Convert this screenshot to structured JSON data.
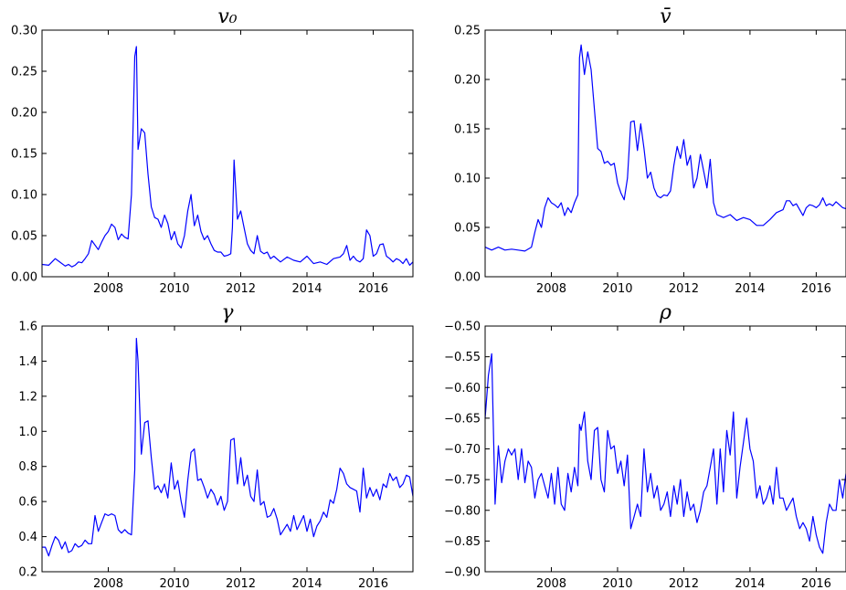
{
  "chart_data": [
    {
      "type": "line",
      "title": "v₀",
      "xlim": [
        2006.0,
        2017.2
      ],
      "ylim": [
        0.0,
        0.3
      ],
      "xticks": [
        2008,
        2010,
        2012,
        2014,
        2016
      ],
      "xtick_labels": [
        "2008",
        "2010",
        "2012",
        "2014",
        "2016"
      ],
      "yticks": [
        0.0,
        0.05,
        0.1,
        0.15,
        0.2,
        0.25,
        0.3
      ],
      "ytick_labels": [
        "0.00",
        "0.05",
        "0.10",
        "0.15",
        "0.20",
        "0.25",
        "0.30"
      ],
      "series": [
        {
          "color": "#0000ff",
          "x": [
            2006.0,
            2006.2,
            2006.4,
            2006.5,
            2006.7,
            2006.8,
            2006.9,
            2007.0,
            2007.1,
            2007.2,
            2007.3,
            2007.4,
            2007.5,
            2007.7,
            2007.8,
            2007.9,
            2008.0,
            2008.1,
            2008.2,
            2008.3,
            2008.4,
            2008.5,
            2008.6,
            2008.7,
            2008.8,
            2008.85,
            2008.9,
            2009.0,
            2009.1,
            2009.2,
            2009.3,
            2009.4,
            2009.5,
            2009.6,
            2009.7,
            2009.8,
            2009.9,
            2010.0,
            2010.1,
            2010.2,
            2010.3,
            2010.4,
            2010.5,
            2010.6,
            2010.7,
            2010.8,
            2010.9,
            2011.0,
            2011.1,
            2011.2,
            2011.3,
            2011.4,
            2011.5,
            2011.6,
            2011.7,
            2011.75,
            2011.8,
            2011.9,
            2012.0,
            2012.1,
            2012.2,
            2012.3,
            2012.4,
            2012.5,
            2012.6,
            2012.7,
            2012.8,
            2012.9,
            2013.0,
            2013.2,
            2013.4,
            2013.6,
            2013.8,
            2014.0,
            2014.2,
            2014.4,
            2014.6,
            2014.8,
            2015.0,
            2015.1,
            2015.2,
            2015.3,
            2015.4,
            2015.5,
            2015.6,
            2015.7,
            2015.8,
            2015.9,
            2016.0,
            2016.1,
            2016.2,
            2016.3,
            2016.4,
            2016.5,
            2016.6,
            2016.7,
            2016.8,
            2016.9,
            2017.0,
            2017.1,
            2017.2
          ],
          "y": [
            0.015,
            0.014,
            0.022,
            0.019,
            0.013,
            0.015,
            0.012,
            0.014,
            0.018,
            0.017,
            0.022,
            0.028,
            0.044,
            0.033,
            0.042,
            0.05,
            0.055,
            0.064,
            0.06,
            0.045,
            0.052,
            0.048,
            0.046,
            0.1,
            0.268,
            0.28,
            0.155,
            0.18,
            0.175,
            0.125,
            0.085,
            0.072,
            0.07,
            0.06,
            0.075,
            0.065,
            0.045,
            0.055,
            0.04,
            0.035,
            0.05,
            0.08,
            0.1,
            0.062,
            0.075,
            0.055,
            0.045,
            0.05,
            0.04,
            0.032,
            0.03,
            0.03,
            0.025,
            0.026,
            0.028,
            0.06,
            0.142,
            0.07,
            0.08,
            0.06,
            0.04,
            0.032,
            0.028,
            0.05,
            0.031,
            0.028,
            0.03,
            0.022,
            0.025,
            0.018,
            0.024,
            0.02,
            0.018,
            0.025,
            0.016,
            0.018,
            0.015,
            0.022,
            0.024,
            0.028,
            0.038,
            0.02,
            0.025,
            0.02,
            0.018,
            0.022,
            0.057,
            0.05,
            0.025,
            0.028,
            0.039,
            0.04,
            0.025,
            0.022,
            0.018,
            0.022,
            0.02,
            0.016,
            0.022,
            0.014,
            0.018
          ]
        }
      ]
    },
    {
      "type": "line",
      "title": "v̄",
      "xlim": [
        2006.0,
        2016.9
      ],
      "ylim": [
        0.0,
        0.25
      ],
      "xticks": [
        2008,
        2010,
        2012,
        2014,
        2016
      ],
      "xtick_labels": [
        "2008",
        "2010",
        "2012",
        "2014",
        "2016"
      ],
      "yticks": [
        0.0,
        0.05,
        0.1,
        0.15,
        0.2,
        0.25
      ],
      "ytick_labels": [
        "0.00",
        "0.05",
        "0.10",
        "0.15",
        "0.20",
        "0.25"
      ],
      "series": [
        {
          "color": "#0000ff",
          "x": [
            2006.0,
            2006.2,
            2006.4,
            2006.6,
            2006.8,
            2007.0,
            2007.2,
            2007.4,
            2007.5,
            2007.6,
            2007.7,
            2007.8,
            2007.9,
            2008.0,
            2008.1,
            2008.2,
            2008.3,
            2008.4,
            2008.5,
            2008.6,
            2008.7,
            2008.8,
            2008.85,
            2008.9,
            2009.0,
            2009.1,
            2009.2,
            2009.3,
            2009.4,
            2009.5,
            2009.6,
            2009.7,
            2009.8,
            2009.9,
            2010.0,
            2010.1,
            2010.2,
            2010.3,
            2010.4,
            2010.5,
            2010.6,
            2010.7,
            2010.8,
            2010.9,
            2011.0,
            2011.1,
            2011.2,
            2011.3,
            2011.4,
            2011.5,
            2011.6,
            2011.7,
            2011.8,
            2011.9,
            2012.0,
            2012.1,
            2012.2,
            2012.3,
            2012.4,
            2012.5,
            2012.6,
            2012.7,
            2012.8,
            2012.9,
            2013.0,
            2013.2,
            2013.4,
            2013.6,
            2013.8,
            2014.0,
            2014.2,
            2014.4,
            2014.6,
            2014.8,
            2015.0,
            2015.1,
            2015.2,
            2015.3,
            2015.4,
            2015.5,
            2015.6,
            2015.7,
            2015.8,
            2015.9,
            2016.0,
            2016.1,
            2016.2,
            2016.3,
            2016.4,
            2016.5,
            2016.6,
            2016.7,
            2016.8,
            2016.9
          ],
          "y": [
            0.03,
            0.027,
            0.03,
            0.027,
            0.028,
            0.027,
            0.026,
            0.03,
            0.045,
            0.058,
            0.05,
            0.07,
            0.08,
            0.075,
            0.073,
            0.07,
            0.075,
            0.062,
            0.07,
            0.065,
            0.075,
            0.083,
            0.222,
            0.235,
            0.205,
            0.228,
            0.21,
            0.17,
            0.13,
            0.127,
            0.115,
            0.117,
            0.113,
            0.115,
            0.095,
            0.085,
            0.078,
            0.1,
            0.157,
            0.158,
            0.128,
            0.155,
            0.13,
            0.1,
            0.106,
            0.09,
            0.082,
            0.08,
            0.083,
            0.082,
            0.087,
            0.113,
            0.132,
            0.12,
            0.139,
            0.113,
            0.123,
            0.09,
            0.1,
            0.124,
            0.107,
            0.09,
            0.119,
            0.075,
            0.063,
            0.06,
            0.063,
            0.057,
            0.06,
            0.058,
            0.052,
            0.052,
            0.058,
            0.065,
            0.068,
            0.077,
            0.077,
            0.072,
            0.074,
            0.068,
            0.062,
            0.07,
            0.073,
            0.072,
            0.07,
            0.073,
            0.08,
            0.072,
            0.074,
            0.072,
            0.076,
            0.073,
            0.07,
            0.069
          ]
        }
      ]
    },
    {
      "type": "line",
      "title": "γ",
      "xlim": [
        2006.0,
        2017.2
      ],
      "ylim": [
        0.2,
        1.6
      ],
      "xticks": [
        2008,
        2010,
        2012,
        2014,
        2016
      ],
      "xtick_labels": [
        "2008",
        "2010",
        "2012",
        "2014",
        "2016"
      ],
      "yticks": [
        0.2,
        0.4,
        0.6,
        0.8,
        1.0,
        1.2,
        1.4,
        1.6
      ],
      "ytick_labels": [
        "0.2",
        "0.4",
        "0.6",
        "0.8",
        "1.0",
        "1.2",
        "1.4",
        "1.6"
      ],
      "series": [
        {
          "color": "#0000ff",
          "x": [
            2006.0,
            2006.1,
            2006.2,
            2006.3,
            2006.4,
            2006.5,
            2006.6,
            2006.7,
            2006.8,
            2006.9,
            2007.0,
            2007.1,
            2007.2,
            2007.3,
            2007.4,
            2007.5,
            2007.6,
            2007.7,
            2007.8,
            2007.9,
            2008.0,
            2008.1,
            2008.2,
            2008.3,
            2008.4,
            2008.5,
            2008.6,
            2008.7,
            2008.8,
            2008.85,
            2008.9,
            2009.0,
            2009.1,
            2009.2,
            2009.3,
            2009.4,
            2009.5,
            2009.6,
            2009.7,
            2009.8,
            2009.9,
            2010.0,
            2010.1,
            2010.2,
            2010.3,
            2010.4,
            2010.5,
            2010.6,
            2010.7,
            2010.8,
            2010.9,
            2011.0,
            2011.1,
            2011.2,
            2011.3,
            2011.4,
            2011.5,
            2011.6,
            2011.7,
            2011.8,
            2011.9,
            2012.0,
            2012.1,
            2012.2,
            2012.3,
            2012.4,
            2012.5,
            2012.6,
            2012.7,
            2012.8,
            2012.9,
            2013.0,
            2013.1,
            2013.2,
            2013.3,
            2013.4,
            2013.5,
            2013.6,
            2013.7,
            2013.8,
            2013.9,
            2014.0,
            2014.1,
            2014.2,
            2014.3,
            2014.4,
            2014.5,
            2014.6,
            2014.7,
            2014.8,
            2014.9,
            2015.0,
            2015.1,
            2015.2,
            2015.3,
            2015.4,
            2015.5,
            2015.6,
            2015.7,
            2015.8,
            2015.9,
            2016.0,
            2016.1,
            2016.2,
            2016.3,
            2016.4,
            2016.5,
            2016.6,
            2016.7,
            2016.8,
            2016.9,
            2017.0,
            2017.1,
            2017.2
          ],
          "y": [
            0.34,
            0.34,
            0.29,
            0.35,
            0.4,
            0.38,
            0.33,
            0.37,
            0.31,
            0.32,
            0.36,
            0.34,
            0.35,
            0.38,
            0.36,
            0.36,
            0.52,
            0.43,
            0.48,
            0.53,
            0.52,
            0.53,
            0.52,
            0.44,
            0.42,
            0.44,
            0.42,
            0.41,
            0.78,
            1.53,
            1.4,
            0.87,
            1.05,
            1.06,
            0.85,
            0.67,
            0.69,
            0.65,
            0.7,
            0.62,
            0.82,
            0.67,
            0.72,
            0.6,
            0.51,
            0.72,
            0.88,
            0.9,
            0.72,
            0.73,
            0.68,
            0.62,
            0.67,
            0.64,
            0.58,
            0.63,
            0.55,
            0.6,
            0.95,
            0.96,
            0.7,
            0.85,
            0.69,
            0.75,
            0.63,
            0.6,
            0.78,
            0.58,
            0.6,
            0.51,
            0.52,
            0.56,
            0.5,
            0.41,
            0.44,
            0.47,
            0.43,
            0.52,
            0.44,
            0.48,
            0.52,
            0.43,
            0.5,
            0.4,
            0.46,
            0.49,
            0.54,
            0.51,
            0.61,
            0.59,
            0.67,
            0.79,
            0.76,
            0.7,
            0.68,
            0.67,
            0.66,
            0.54,
            0.79,
            0.62,
            0.68,
            0.63,
            0.67,
            0.61,
            0.7,
            0.68,
            0.76,
            0.72,
            0.74,
            0.68,
            0.7,
            0.75,
            0.74,
            0.63
          ]
        }
      ]
    },
    {
      "type": "line",
      "title": "ρ",
      "xlim": [
        2006.0,
        2016.9
      ],
      "ylim": [
        -0.9,
        -0.5
      ],
      "xticks": [
        2008,
        2010,
        2012,
        2014,
        2016
      ],
      "xtick_labels": [
        "2008",
        "2010",
        "2012",
        "2014",
        "2016"
      ],
      "yticks": [
        -0.9,
        -0.85,
        -0.8,
        -0.75,
        -0.7,
        -0.65,
        -0.6,
        -0.55,
        -0.5
      ],
      "ytick_labels": [
        "−0.90",
        "−0.85",
        "−0.80",
        "−0.75",
        "−0.70",
        "−0.65",
        "−0.60",
        "−0.55",
        "−0.50"
      ],
      "series": [
        {
          "color": "#0000ff",
          "x": [
            2006.0,
            2006.1,
            2006.2,
            2006.3,
            2006.4,
            2006.5,
            2006.6,
            2006.7,
            2006.8,
            2006.9,
            2007.0,
            2007.1,
            2007.2,
            2007.3,
            2007.4,
            2007.5,
            2007.6,
            2007.7,
            2007.8,
            2007.9,
            2008.0,
            2008.1,
            2008.2,
            2008.3,
            2008.4,
            2008.5,
            2008.6,
            2008.7,
            2008.8,
            2008.85,
            2008.9,
            2009.0,
            2009.1,
            2009.2,
            2009.3,
            2009.4,
            2009.5,
            2009.6,
            2009.7,
            2009.8,
            2009.9,
            2010.0,
            2010.1,
            2010.2,
            2010.3,
            2010.4,
            2010.5,
            2010.6,
            2010.7,
            2010.8,
            2010.9,
            2011.0,
            2011.1,
            2011.2,
            2011.3,
            2011.4,
            2011.5,
            2011.6,
            2011.7,
            2011.8,
            2011.9,
            2012.0,
            2012.1,
            2012.2,
            2012.3,
            2012.4,
            2012.5,
            2012.6,
            2012.7,
            2012.8,
            2012.9,
            2013.0,
            2013.1,
            2013.2,
            2013.3,
            2013.4,
            2013.5,
            2013.6,
            2013.7,
            2013.8,
            2013.9,
            2014.0,
            2014.1,
            2014.2,
            2014.3,
            2014.4,
            2014.5,
            2014.6,
            2014.7,
            2014.8,
            2014.9,
            2015.0,
            2015.1,
            2015.2,
            2015.3,
            2015.4,
            2015.5,
            2015.6,
            2015.7,
            2015.8,
            2015.9,
            2016.0,
            2016.1,
            2016.2,
            2016.3,
            2016.4,
            2016.5,
            2016.6,
            2016.7,
            2016.8,
            2016.9
          ],
          "y": [
            -0.65,
            -0.58,
            -0.545,
            -0.79,
            -0.695,
            -0.755,
            -0.72,
            -0.7,
            -0.71,
            -0.7,
            -0.75,
            -0.7,
            -0.755,
            -0.72,
            -0.73,
            -0.78,
            -0.75,
            -0.74,
            -0.76,
            -0.78,
            -0.74,
            -0.79,
            -0.73,
            -0.79,
            -0.8,
            -0.74,
            -0.77,
            -0.73,
            -0.76,
            -0.66,
            -0.67,
            -0.64,
            -0.72,
            -0.75,
            -0.67,
            -0.665,
            -0.75,
            -0.77,
            -0.67,
            -0.7,
            -0.695,
            -0.74,
            -0.72,
            -0.76,
            -0.71,
            -0.83,
            -0.81,
            -0.79,
            -0.81,
            -0.7,
            -0.77,
            -0.74,
            -0.78,
            -0.76,
            -0.8,
            -0.79,
            -0.77,
            -0.81,
            -0.76,
            -0.79,
            -0.75,
            -0.81,
            -0.77,
            -0.8,
            -0.79,
            -0.82,
            -0.8,
            -0.77,
            -0.76,
            -0.73,
            -0.7,
            -0.79,
            -0.7,
            -0.77,
            -0.67,
            -0.71,
            -0.64,
            -0.78,
            -0.73,
            -0.69,
            -0.65,
            -0.7,
            -0.72,
            -0.78,
            -0.76,
            -0.79,
            -0.78,
            -0.76,
            -0.79,
            -0.73,
            -0.78,
            -0.78,
            -0.8,
            -0.79,
            -0.78,
            -0.81,
            -0.83,
            -0.82,
            -0.83,
            -0.85,
            -0.81,
            -0.84,
            -0.86,
            -0.87,
            -0.82,
            -0.79,
            -0.8,
            -0.8,
            -0.75,
            -0.78,
            -0.74
          ]
        }
      ]
    }
  ]
}
